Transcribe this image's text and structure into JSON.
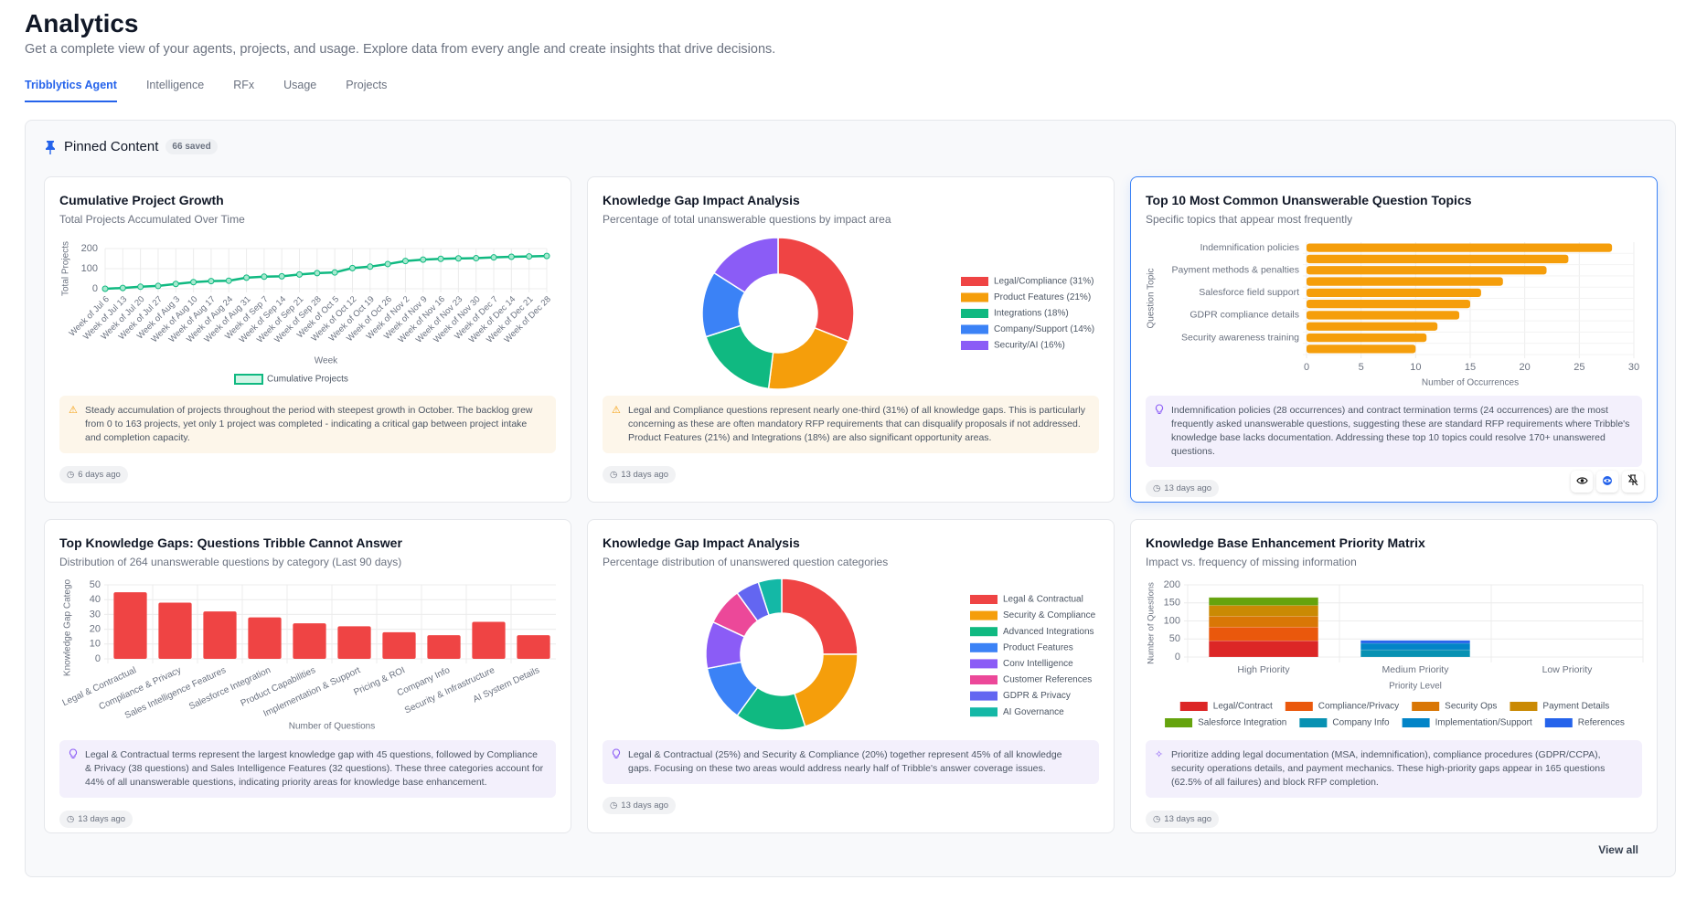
{
  "header": {
    "title": "Analytics",
    "subtitle": "Get a complete view of your agents, projects, and usage. Explore data from every angle and create insights that drive decisions."
  },
  "tabs": [
    {
      "label": "Tribblytics Agent",
      "active": true
    },
    {
      "label": "Intelligence"
    },
    {
      "label": "RFx"
    },
    {
      "label": "Usage"
    },
    {
      "label": "Projects"
    }
  ],
  "pinned": {
    "title": "Pinned Content",
    "count": "66 saved",
    "view_all": "View all",
    "icon": "pin-icon"
  },
  "cards": [
    {
      "title": "Cumulative Project Growth",
      "subtitle": "Total Projects Accumulated Over Time",
      "note": "Steady accumulation of projects throughout the period with steepest growth in October. The backlog grew from 0 to 163 projects, yet only 1 project was completed - indicating a critical gap between project intake and completion capacity.",
      "note_icon": "warning-icon",
      "time": "6 days ago"
    },
    {
      "title": "Knowledge Gap Impact Analysis",
      "subtitle": "Percentage of total unanswerable questions by impact area",
      "note": "Legal and Compliance questions represent nearly one-third (31%) of all knowledge gaps. This is particularly concerning as these are often mandatory RFP requirements that can disqualify proposals if not addressed. Product Features (21%) and Integrations (18%) are also significant opportunity areas.",
      "note_icon": "warning-icon",
      "time": "13 days ago"
    },
    {
      "title": "Top 10 Most Common Unanswerable Question Topics",
      "subtitle": "Specific topics that appear most frequently",
      "note": "Indemnification policies (28 occurrences) and contract termination terms (24 occurrences) are the most frequently asked unanswerable questions, suggesting these are standard RFP requirements where Tribble's knowledge base lacks documentation. Addressing these top 10 topics could resolve 170+ unanswered questions.",
      "note_icon": "lightbulb-icon",
      "time": "13 days ago",
      "selected": true,
      "actions": [
        "eye-icon",
        "insight-icon",
        "unpin-icon"
      ]
    },
    {
      "title": "Top Knowledge Gaps: Questions Tribble Cannot Answer",
      "subtitle": "Distribution of 264 unanswerable questions by category (Last 90 days)",
      "note": "Legal & Contractual terms represent the largest knowledge gap with 45 questions, followed by Compliance & Privacy (38 questions) and Sales Intelligence Features (32 questions). These three categories account for 44% of all unanswerable questions, indicating priority areas for knowledge base enhancement.",
      "note_icon": "lightbulb-icon",
      "time": "13 days ago"
    },
    {
      "title": "Knowledge Gap Impact Analysis",
      "subtitle": "Percentage distribution of unanswered question categories",
      "note": "Legal & Contractual (25%) and Security & Compliance (20%) together represent 45% of all knowledge gaps. Focusing on these two areas would address nearly half of Tribble's answer coverage issues.",
      "note_icon": "lightbulb-icon",
      "time": "13 days ago"
    },
    {
      "title": "Knowledge Base Enhancement Priority Matrix",
      "subtitle": "Impact vs. frequency of missing information",
      "note": "Prioritize adding legal documentation (MSA, indemnification), compliance procedures (GDPR/CCPA), security operations details, and payment mechanics. These high-priority gaps appear in 165 questions (62.5% of all failures) and block RFP completion.",
      "note_icon": "sparkle-icon",
      "time": "13 days ago"
    }
  ],
  "chart_data": [
    {
      "type": "line",
      "xlabel": "Week",
      "ylabel": "Total Projects",
      "ylim": [
        0,
        200
      ],
      "yticks": [
        0,
        100,
        200
      ],
      "grid": true,
      "legend": "bottom",
      "color": "#10b981",
      "x": [
        "Week of Jul 6",
        "Week of Jul 13",
        "Week of Jul 20",
        "Week of Jul 27",
        "Week of Aug 3",
        "Week of Aug 10",
        "Week of Aug 17",
        "Week of Aug 24",
        "Week of Aug 31",
        "Week of Sep 7",
        "Week of Sep 14",
        "Week of Sep 21",
        "Week of Sep 28",
        "Week of Oct 5",
        "Week of Oct 12",
        "Week of Oct 19",
        "Week of Oct 26",
        "Week of Nov 2",
        "Week of Nov 9",
        "Week of Nov 16",
        "Week of Nov 23",
        "Week of Nov 30",
        "Week of Dec 7",
        "Week of Dec 14",
        "Week of Dec 21",
        "Week of Dec 28"
      ],
      "series": [
        {
          "name": "Cumulative Projects",
          "values": [
            0,
            4,
            10,
            14,
            24,
            33,
            38,
            40,
            55,
            60,
            62,
            71,
            78,
            81,
            103,
            110,
            123,
            138,
            145,
            149,
            151,
            152,
            156,
            159,
            161,
            163
          ]
        }
      ]
    },
    {
      "type": "pie",
      "donut": true,
      "legend": "right",
      "categories": [
        "Legal/Compliance (31%)",
        "Product Features (21%)",
        "Integrations (18%)",
        "Company/Support (14%)",
        "Security/AI (16%)"
      ],
      "values": [
        31,
        21,
        18,
        14,
        16
      ],
      "colors": [
        "#ef4444",
        "#f59e0b",
        "#10b981",
        "#3b82f6",
        "#8b5cf6"
      ]
    },
    {
      "type": "bar",
      "orientation": "horizontal",
      "xlabel": "Number of Occurrences",
      "ylabel": "Question Topic",
      "xlim": [
        0,
        30
      ],
      "xticks": [
        0,
        5,
        10,
        15,
        20,
        25,
        30
      ],
      "grid": true,
      "color": "#f59e0b",
      "categories": [
        "Indemnification policies",
        "",
        "Payment methods & penalties",
        "",
        "Salesforce field support",
        "",
        "GDPR compliance details",
        "",
        "Security awareness training",
        ""
      ],
      "values": [
        28,
        24,
        22,
        18,
        16,
        15,
        14,
        12,
        11,
        10
      ]
    },
    {
      "type": "bar",
      "xlabel": "Number of Questions",
      "ylabel": "Knowledge Gap Catego",
      "ylim": [
        0,
        50
      ],
      "yticks": [
        0,
        10,
        20,
        30,
        40,
        50
      ],
      "grid": true,
      "color": "#ef4444",
      "categories": [
        "Legal & Contractual",
        "Compliance & Privacy",
        "Sales Intelligence Features",
        "Salesforce Integration",
        "Product Capabilities",
        "Implementation & Support",
        "Pricing & ROI",
        "Company Info",
        "Security & Infrastructure",
        "AI System Details"
      ],
      "values": [
        45,
        38,
        32,
        28,
        24,
        22,
        18,
        16,
        25,
        16
      ]
    },
    {
      "type": "pie",
      "donut": true,
      "legend": "right",
      "categories": [
        "Legal & Contractual",
        "Security & Compliance",
        "Advanced Integrations",
        "Product Features",
        "Conv Intelligence",
        "Customer References",
        "GDPR & Privacy",
        "AI Governance"
      ],
      "values": [
        25,
        20,
        15,
        12,
        10,
        8,
        5,
        5
      ],
      "colors": [
        "#ef4444",
        "#f59e0b",
        "#10b981",
        "#3b82f6",
        "#8b5cf6",
        "#ec4899",
        "#6366f1",
        "#14b8a6"
      ]
    },
    {
      "type": "bar",
      "stacked": true,
      "xlabel": "Priority Level",
      "ylabel": "Number of Questions",
      "ylim": [
        0,
        200
      ],
      "yticks": [
        0,
        50,
        100,
        150,
        200
      ],
      "grid": true,
      "legend": "bottom",
      "categories": [
        "High Priority",
        "Medium Priority",
        "Low Priority"
      ],
      "series": [
        {
          "name": "Legal/Contract",
          "color": "#dc2626",
          "values": [
            45,
            0,
            0
          ]
        },
        {
          "name": "Compliance/Privacy",
          "color": "#ea580c",
          "values": [
            38,
            0,
            0
          ]
        },
        {
          "name": "Security Ops",
          "color": "#d97706",
          "values": [
            30,
            0,
            0
          ]
        },
        {
          "name": "Payment Details",
          "color": "#ca8a04",
          "values": [
            30,
            0,
            0
          ]
        },
        {
          "name": "Salesforce Integration",
          "color": "#65a30d",
          "values": [
            22,
            0,
            0
          ]
        },
        {
          "name": "Company Info",
          "color": "#0891b2",
          "values": [
            0,
            20,
            0
          ]
        },
        {
          "name": "Implementation/Support",
          "color": "#0284c7",
          "values": [
            0,
            18,
            0
          ]
        },
        {
          "name": "References",
          "color": "#2563eb",
          "values": [
            0,
            8,
            0
          ]
        }
      ]
    }
  ]
}
